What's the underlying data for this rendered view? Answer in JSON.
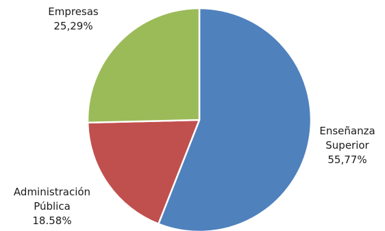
{
  "chart_data": {
    "type": "pie",
    "title": "",
    "start_angle_deg": 0,
    "direction": "clockwise",
    "slices": [
      {
        "label_lines": [
          "Enseñanza",
          "Superior"
        ],
        "value_label": "55,77%",
        "value": 55.77,
        "color": "#4F81BD"
      },
      {
        "label_lines": [
          "Administración",
          "Pública"
        ],
        "value_label": "18.58%",
        "value": 18.58,
        "color": "#C0504D"
      },
      {
        "label_lines": [
          "Empresas"
        ],
        "value_label": "25,29%",
        "value": 25.29,
        "color": "#9BBB59"
      }
    ]
  }
}
